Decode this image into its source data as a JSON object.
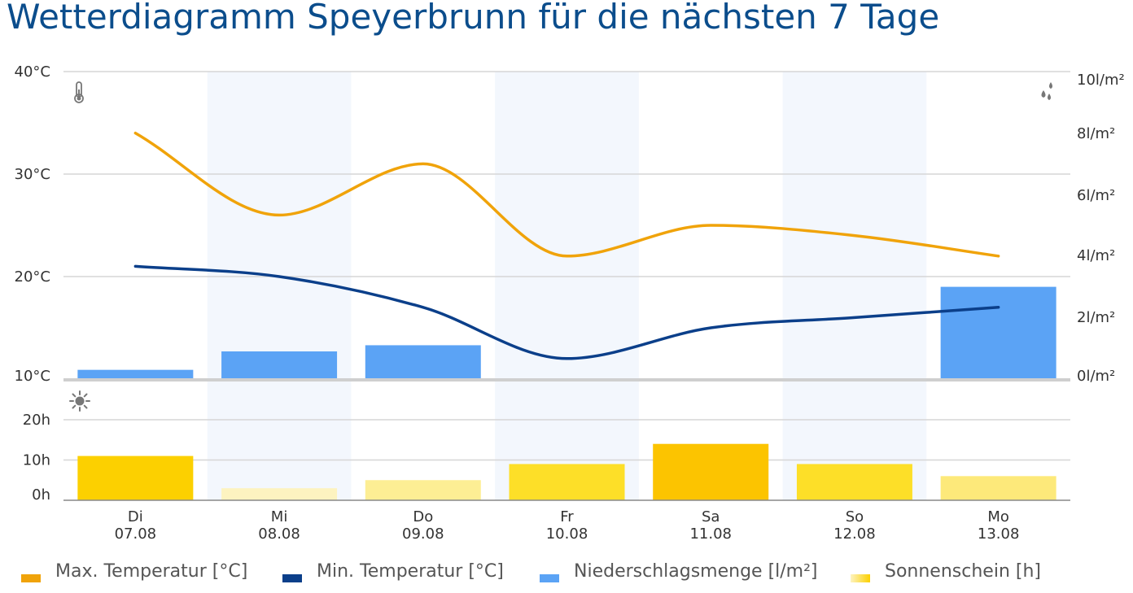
{
  "title": "Wetterdiagramm Speyerbrunn für die nächsten 7 Tage",
  "chart_data": {
    "type": "line",
    "days": [
      {
        "weekday": "Di",
        "date": "07.08"
      },
      {
        "weekday": "Mi",
        "date": "08.08"
      },
      {
        "weekday": "Do",
        "date": "09.08"
      },
      {
        "weekday": "Fr",
        "date": "10.08"
      },
      {
        "weekday": "Sa",
        "date": "11.08"
      },
      {
        "weekday": "So",
        "date": "12.08"
      },
      {
        "weekday": "Mo",
        "date": "13.08"
      }
    ],
    "temp_axis": {
      "ticks": [
        "40°C",
        "30°C",
        "20°C",
        "10°C"
      ],
      "ylim": [
        10,
        40
      ]
    },
    "precip_axis": {
      "ticks": [
        "10l/m²",
        "8l/m²",
        "6l/m²",
        "4l/m²",
        "2l/m²",
        "0l/m²"
      ],
      "ylim": [
        0,
        10
      ]
    },
    "sun_axis": {
      "ticks": [
        "20h",
        "10h",
        "0h"
      ],
      "ylim": [
        0,
        20
      ]
    },
    "series": [
      {
        "name": "Max. Temperatur [°C]",
        "key": "tmax",
        "color": "#f0a30a",
        "values": [
          34,
          26,
          31,
          22,
          25,
          24,
          22
        ]
      },
      {
        "name": "Min. Temperatur [°C]",
        "key": "tmin",
        "color": "#0b3f8a",
        "values": [
          21,
          20,
          17,
          12,
          15,
          16,
          17
        ]
      },
      {
        "name": "Niederschlagsmenge [l/m²]",
        "key": "precip",
        "color": "#5ba3f5",
        "values": [
          0.3,
          0.9,
          1.1,
          0,
          0,
          0,
          3.0
        ]
      },
      {
        "name": "Sonnenschein [h]",
        "key": "sun",
        "color": "#fcd40a",
        "values": [
          11,
          3,
          5,
          9,
          14,
          9,
          6
        ]
      }
    ],
    "sun_colors": [
      "#fcd000",
      "#fdf3c0",
      "#fdee94",
      "#fddf28",
      "#fcc400",
      "#fddf28",
      "#fde97a"
    ],
    "icons": {
      "temperature": "thermometer-icon",
      "precipitation": "raindrops-icon",
      "sunshine": "sun-icon"
    },
    "shaded_columns": [
      1,
      3,
      5
    ]
  }
}
